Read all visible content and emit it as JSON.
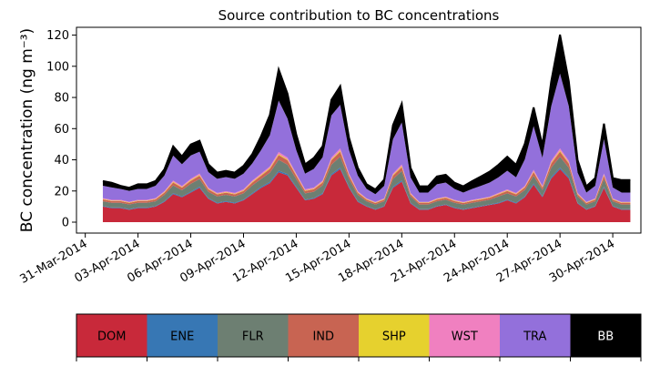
{
  "chart_data": {
    "type": "area",
    "title": "Source contribution to BC concentrations",
    "ylabel": "BC concentration (ng m⁻³)",
    "xlabel": "",
    "ylim": [
      -7,
      125
    ],
    "yticks": [
      0,
      20,
      40,
      60,
      80,
      100,
      120
    ],
    "x_start_day": 0,
    "x_end_day": 31,
    "x_tick_days": [
      0,
      3,
      6,
      9,
      12,
      15,
      18,
      21,
      24,
      27,
      30
    ],
    "x_tick_labels": [
      "31-Mar-2014",
      "03-Apr-2014",
      "06-Apr-2014",
      "09-Apr-2014",
      "12-Apr-2014",
      "15-Apr-2014",
      "18-Apr-2014",
      "21-Apr-2014",
      "24-Apr-2014",
      "27-Apr-2014",
      "30-Apr-2014"
    ],
    "series_order": [
      "DOM",
      "ENE",
      "FLR",
      "IND",
      "SHP",
      "WST",
      "TRA",
      "BB"
    ],
    "colors": {
      "DOM": "#c8293a",
      "ENE": "#3777b4",
      "FLR": "#6d7f72",
      "IND": "#c86452",
      "SHP": "#e6d12e",
      "WST": "#f080c0",
      "TRA": "#9370db",
      "BB": "#000000"
    },
    "series_note": "Stacked daily totals; series DOM→BB. Times are days after 31-Mar-2014 00:00.",
    "days": [
      1.0,
      1.5,
      2.0,
      2.5,
      3.0,
      3.5,
      4.0,
      4.5,
      5.0,
      5.5,
      6.0,
      6.5,
      7.0,
      7.5,
      8.0,
      8.5,
      9.0,
      9.5,
      10.0,
      10.5,
      11.0,
      11.5,
      12.0,
      12.5,
      13.0,
      13.5,
      14.0,
      14.5,
      15.0,
      15.5,
      16.0,
      16.5,
      17.0,
      17.5,
      18.0,
      18.5,
      19.0,
      19.5,
      20.0,
      20.5,
      21.0,
      21.5,
      22.0,
      22.5,
      23.0,
      23.5,
      24.0,
      24.5,
      25.0,
      25.5,
      26.0,
      26.5,
      27.0,
      27.5,
      28.0,
      28.5,
      29.0,
      29.5,
      30.0,
      30.5,
      31.0
    ],
    "series": [
      {
        "name": "DOM",
        "values": [
          10,
          9,
          9,
          8,
          9,
          9,
          10,
          13,
          18,
          16,
          19,
          22,
          15,
          12,
          13,
          12,
          14,
          18,
          22,
          25,
          32,
          30,
          22,
          14,
          15,
          18,
          30,
          34,
          22,
          13,
          10,
          8,
          10,
          22,
          26,
          12,
          8,
          8,
          10,
          11,
          9,
          8,
          9,
          10,
          11,
          12,
          14,
          12,
          16,
          24,
          16,
          28,
          34,
          28,
          12,
          8,
          10,
          22,
          10,
          8,
          8
        ]
      },
      {
        "name": "ENE",
        "values": [
          0.4,
          0.4,
          0.4,
          0.4,
          0.4,
          0.4,
          0.4,
          0.5,
          0.6,
          0.5,
          0.6,
          0.7,
          0.5,
          0.5,
          0.5,
          0.5,
          0.5,
          0.6,
          0.7,
          0.8,
          1.0,
          0.9,
          0.7,
          0.5,
          0.5,
          0.6,
          0.9,
          1.0,
          0.7,
          0.5,
          0.4,
          0.3,
          0.4,
          0.7,
          0.8,
          0.5,
          0.3,
          0.3,
          0.4,
          0.4,
          0.4,
          0.3,
          0.4,
          0.4,
          0.4,
          0.5,
          0.5,
          0.5,
          0.6,
          0.8,
          0.6,
          0.9,
          1.0,
          0.9,
          0.5,
          0.3,
          0.4,
          0.7,
          0.4,
          0.3,
          0.3
        ]
      },
      {
        "name": "FLR",
        "values": [
          3,
          3,
          3,
          3,
          3,
          3,
          3,
          4,
          5,
          4,
          5,
          5,
          4,
          4,
          4,
          4,
          4,
          5,
          5,
          6,
          7,
          6,
          5,
          4,
          4,
          5,
          6,
          7,
          5,
          4,
          3,
          3,
          3,
          5,
          6,
          4,
          3,
          3,
          3,
          3,
          3,
          3,
          3,
          3,
          3,
          4,
          4,
          4,
          4,
          5,
          4,
          6,
          7,
          6,
          4,
          3,
          3,
          5,
          3,
          3,
          3
        ]
      },
      {
        "name": "IND",
        "values": [
          1.2,
          1.1,
          1.1,
          1,
          1.1,
          1.1,
          1.2,
          1.4,
          1.8,
          1.6,
          1.9,
          2.1,
          1.5,
          1.3,
          1.4,
          1.3,
          1.5,
          1.8,
          2.1,
          2.4,
          3,
          2.8,
          2.1,
          1.5,
          1.6,
          1.8,
          2.8,
          3.2,
          2.1,
          1.4,
          1.1,
          1,
          1.1,
          2.1,
          2.5,
          1.3,
          1,
          1,
          1.1,
          1.2,
          1.1,
          1,
          1.1,
          1.1,
          1.2,
          1.3,
          1.5,
          1.3,
          1.6,
          2.3,
          1.6,
          2.7,
          3.2,
          2.7,
          1.3,
          1,
          1.1,
          2.1,
          1.1,
          1,
          1
        ]
      },
      {
        "name": "SHP",
        "values": [
          0.3,
          0.3,
          0.3,
          0.3,
          0.3,
          0.3,
          0.3,
          0.4,
          0.5,
          0.4,
          0.5,
          0.5,
          0.4,
          0.4,
          0.4,
          0.4,
          0.4,
          0.5,
          0.5,
          0.6,
          0.7,
          0.6,
          0.5,
          0.4,
          0.4,
          0.5,
          0.6,
          0.7,
          0.5,
          0.4,
          0.3,
          0.3,
          0.3,
          0.5,
          0.6,
          0.4,
          0.3,
          0.3,
          0.3,
          0.3,
          0.3,
          0.3,
          0.3,
          0.3,
          0.3,
          0.4,
          0.4,
          0.4,
          0.4,
          0.5,
          0.4,
          0.6,
          0.7,
          0.6,
          0.4,
          0.3,
          0.3,
          0.5,
          0.3,
          0.3,
          0.3
        ]
      },
      {
        "name": "WST",
        "values": [
          0.5,
          0.5,
          0.5,
          0.4,
          0.5,
          0.5,
          0.5,
          0.6,
          0.8,
          0.7,
          0.8,
          0.9,
          0.7,
          0.6,
          0.6,
          0.6,
          0.7,
          0.8,
          0.9,
          1,
          1.3,
          1.2,
          0.9,
          0.7,
          0.7,
          0.8,
          1.2,
          1.4,
          0.9,
          0.6,
          0.5,
          0.4,
          0.5,
          0.9,
          1.1,
          0.6,
          0.4,
          0.4,
          0.5,
          0.5,
          0.5,
          0.4,
          0.5,
          0.5,
          0.5,
          0.6,
          0.6,
          0.6,
          0.7,
          1,
          0.7,
          1.2,
          1.4,
          1.2,
          0.6,
          0.4,
          0.5,
          0.9,
          0.5,
          0.4,
          0.4
        ]
      },
      {
        "name": "TRA",
        "values": [
          8,
          8,
          7,
          7,
          7,
          7,
          8,
          10,
          16,
          14,
          15,
          14,
          10,
          9,
          9,
          9,
          10,
          11,
          15,
          20,
          33,
          25,
          15,
          10,
          12,
          15,
          27,
          28,
          15,
          10,
          6,
          5,
          8,
          22,
          27,
          10,
          6,
          6,
          9,
          9,
          7,
          6,
          7,
          8,
          9,
          10,
          12,
          10,
          17,
          28,
          18,
          35,
          48,
          35,
          13,
          6,
          8,
          22,
          7,
          6,
          6
        ]
      },
      {
        "name": "BB",
        "values": [
          3,
          3,
          2,
          2,
          3,
          3,
          3,
          4,
          6,
          5,
          7,
          7,
          5,
          4,
          4,
          4,
          5,
          6,
          9,
          13,
          20,
          16,
          10,
          6,
          7,
          7,
          10,
          12,
          8,
          5,
          3,
          3,
          4,
          9,
          12,
          6,
          4,
          4,
          5,
          5,
          4,
          4,
          5,
          6,
          7,
          8,
          9,
          8,
          10,
          12,
          8,
          16,
          25,
          16,
          8,
          4,
          5,
          10,
          6,
          8,
          8
        ]
      }
    ]
  },
  "legend": {
    "items": [
      {
        "label": "DOM",
        "color": "#c8293a",
        "text_color": "#000000"
      },
      {
        "label": "ENE",
        "color": "#3777b4",
        "text_color": "#000000"
      },
      {
        "label": "FLR",
        "color": "#6d7f72",
        "text_color": "#000000"
      },
      {
        "label": "IND",
        "color": "#c86452",
        "text_color": "#000000"
      },
      {
        "label": "SHP",
        "color": "#e6d12e",
        "text_color": "#000000"
      },
      {
        "label": "WST",
        "color": "#f080c0",
        "text_color": "#000000"
      },
      {
        "label": "TRA",
        "color": "#9370db",
        "text_color": "#000000"
      },
      {
        "label": "BB",
        "color": "#000000",
        "text_color": "#ffffff"
      }
    ]
  }
}
